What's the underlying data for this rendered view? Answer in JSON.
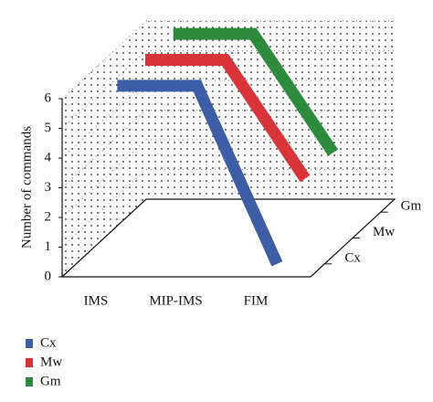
{
  "chart_data": {
    "type": "line3d",
    "y_label": "Number of commands",
    "categories": [
      "IMS",
      "MIP-IMS",
      "FIM"
    ],
    "series": [
      {
        "name": "Cx",
        "color": "#3d5ea6",
        "values": [
          6,
          6,
          0
        ]
      },
      {
        "name": "Mw",
        "color": "#d8343a",
        "values": [
          6,
          6,
          2
        ]
      },
      {
        "name": "Gm",
        "color": "#2e8b3e",
        "values": [
          6,
          6,
          2
        ]
      }
    ],
    "ylim": [
      0,
      6
    ],
    "yticks": [
      0,
      1,
      2,
      3,
      4,
      5,
      6
    ],
    "grid": true
  }
}
